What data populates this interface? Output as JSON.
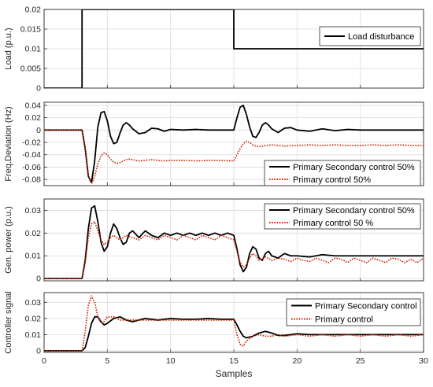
{
  "chart_data": [
    {
      "type": "line",
      "ylabel": "Load (p.u.)",
      "xlim": [
        0,
        30
      ],
      "ylim": [
        0,
        0.02
      ],
      "yticks": [
        "0",
        "0.005",
        "0.01",
        "0.015",
        "0.02"
      ],
      "grid": true,
      "legend_position": "top-right",
      "series": [
        {
          "name": "Load disturbance",
          "color": "#000000",
          "style": "solid",
          "x": [
            0,
            3,
            3,
            15,
            15,
            30
          ],
          "y": [
            0,
            0,
            0.02,
            0.02,
            0.01,
            0.01
          ]
        }
      ]
    },
    {
      "type": "line",
      "ylabel": "Freq.Deviation (Hz)",
      "xlim": [
        0,
        30
      ],
      "ylim": [
        -0.09,
        0.045
      ],
      "yticks": [
        "0.04",
        "0.02",
        "0",
        "-0.02",
        "-0.04",
        "-0.06",
        "-0.08"
      ],
      "grid": true,
      "legend_position": "bottom-right",
      "series": [
        {
          "name": "Primary Secondary control 50%",
          "color": "#000000",
          "style": "solid",
          "x": [
            0,
            3,
            3.25,
            3.5,
            3.75,
            4,
            4.25,
            4.5,
            4.75,
            5,
            5.25,
            5.5,
            5.75,
            6,
            6.25,
            6.5,
            6.75,
            7,
            7.5,
            8,
            8.5,
            9,
            9.5,
            10,
            11,
            12,
            13,
            14,
            15,
            15.25,
            15.5,
            15.75,
            16,
            16.25,
            16.5,
            16.75,
            17,
            17.25,
            17.5,
            17.75,
            18,
            18.5,
            19,
            19.5,
            20,
            21,
            22,
            23,
            24,
            25,
            26,
            27,
            28,
            29,
            30
          ],
          "y": [
            0,
            0,
            -0.03,
            -0.075,
            -0.085,
            -0.05,
            0.005,
            0.028,
            0.03,
            0.015,
            -0.01,
            -0.022,
            -0.02,
            -0.005,
            0.008,
            0.012,
            0.008,
            0.002,
            -0.006,
            -0.004,
            0.003,
            0.002,
            -0.002,
            0.001,
            0,
            0.001,
            0,
            0,
            0,
            0.02,
            0.037,
            0.04,
            0.025,
            0.005,
            -0.01,
            -0.012,
            -0.004,
            0.008,
            0.012,
            0.008,
            0.002,
            -0.004,
            0.003,
            0.004,
            0,
            -0.002,
            0.002,
            -0.001,
            0.001,
            0,
            0,
            0,
            0,
            0,
            0
          ]
        },
        {
          "name": "Primary control 50%",
          "color": "#cc2200",
          "style": "dotted",
          "x": [
            0,
            3,
            3.25,
            3.5,
            3.75,
            4,
            4.25,
            4.5,
            4.75,
            5,
            5.25,
            5.5,
            5.75,
            6,
            6.25,
            6.5,
            6.75,
            7,
            7.5,
            8,
            8.5,
            9,
            9.5,
            10,
            11,
            12,
            13,
            14,
            15,
            15.25,
            15.5,
            15.75,
            16,
            16.25,
            16.5,
            16.75,
            17,
            17.5,
            18,
            18.5,
            19,
            20,
            21,
            22,
            23,
            24,
            25,
            26,
            27,
            28,
            29,
            30
          ],
          "y": [
            0,
            0,
            -0.03,
            -0.075,
            -0.087,
            -0.075,
            -0.055,
            -0.042,
            -0.037,
            -0.04,
            -0.047,
            -0.052,
            -0.054,
            -0.053,
            -0.05,
            -0.048,
            -0.047,
            -0.048,
            -0.05,
            -0.049,
            -0.048,
            -0.049,
            -0.05,
            -0.049,
            -0.049,
            -0.05,
            -0.049,
            -0.049,
            -0.05,
            -0.04,
            -0.03,
            -0.022,
            -0.018,
            -0.02,
            -0.024,
            -0.026,
            -0.027,
            -0.025,
            -0.024,
            -0.025,
            -0.026,
            -0.025,
            -0.024,
            -0.025,
            -0.024,
            -0.025,
            -0.025,
            -0.024,
            -0.025,
            -0.024,
            -0.025,
            -0.025
          ]
        }
      ]
    },
    {
      "type": "line",
      "ylabel": "Gen. power (p.u.)",
      "xlim": [
        0,
        30
      ],
      "ylim": [
        -0.001,
        0.035
      ],
      "yticks": [
        "0.03",
        "0.02",
        "0.01",
        "0"
      ],
      "grid": true,
      "legend_position": "top-right",
      "series": [
        {
          "name": "Primary Secondary control 50%",
          "color": "#000000",
          "style": "solid",
          "x": [
            0,
            3,
            3.25,
            3.5,
            3.75,
            4,
            4.25,
            4.5,
            4.75,
            5,
            5.25,
            5.5,
            5.75,
            6,
            6.25,
            6.5,
            6.75,
            7,
            7.5,
            8,
            8.5,
            9,
            9.5,
            10,
            10.5,
            11,
            11.5,
            12,
            12.5,
            13,
            13.5,
            14,
            14.5,
            15,
            15.25,
            15.5,
            15.75,
            16,
            16.25,
            16.5,
            16.75,
            17,
            17.25,
            17.5,
            17.75,
            18,
            18.5,
            19,
            19.5,
            20,
            21,
            22,
            23,
            24,
            25,
            26,
            27,
            28,
            29,
            30
          ],
          "y": [
            0,
            0,
            0.008,
            0.022,
            0.031,
            0.032,
            0.025,
            0.016,
            0.012,
            0.014,
            0.02,
            0.024,
            0.022,
            0.018,
            0.015,
            0.016,
            0.02,
            0.021,
            0.018,
            0.021,
            0.019,
            0.018,
            0.02,
            0.019,
            0.02,
            0.019,
            0.02,
            0.019,
            0.02,
            0.019,
            0.02,
            0.019,
            0.02,
            0.019,
            0.013,
            0.006,
            0.003,
            0.005,
            0.011,
            0.014,
            0.013,
            0.009,
            0.008,
            0.011,
            0.012,
            0.01,
            0.009,
            0.011,
            0.01,
            0.01,
            0.0095,
            0.0105,
            0.01,
            0.01,
            0.01,
            0.01,
            0.01,
            0.01,
            0.01,
            0.01
          ]
        },
        {
          "name": "Primary control 50 %",
          "color": "#cc2200",
          "style": "dotted",
          "x": [
            0,
            3,
            3.25,
            3.5,
            3.75,
            4,
            4.25,
            4.5,
            4.75,
            5,
            5.25,
            5.5,
            5.75,
            6,
            6.5,
            7,
            7.5,
            8,
            8.5,
            9,
            9.5,
            10,
            10.5,
            11,
            11.5,
            12,
            12.5,
            13,
            13.5,
            14,
            14.5,
            15,
            15.25,
            15.5,
            15.75,
            16,
            16.25,
            16.5,
            16.75,
            17,
            17.5,
            18,
            18.5,
            19,
            19.5,
            20,
            20.5,
            21,
            21.5,
            22,
            22.5,
            23,
            23.5,
            24,
            24.5,
            25,
            25.5,
            26,
            26.5,
            27,
            27.5,
            28,
            28.5,
            29,
            29.5,
            30
          ],
          "y": [
            0,
            0,
            0.007,
            0.018,
            0.024,
            0.025,
            0.021,
            0.017,
            0.015,
            0.016,
            0.018,
            0.019,
            0.018,
            0.017,
            0.019,
            0.018,
            0.017,
            0.019,
            0.018,
            0.017,
            0.019,
            0.018,
            0.017,
            0.019,
            0.018,
            0.017,
            0.019,
            0.018,
            0.017,
            0.019,
            0.018,
            0.017,
            0.012,
            0.007,
            0.005,
            0.006,
            0.009,
            0.011,
            0.01,
            0.008,
            0.0095,
            0.008,
            0.009,
            0.0085,
            0.0075,
            0.009,
            0.008,
            0.0075,
            0.009,
            0.008,
            0.007,
            0.009,
            0.0085,
            0.007,
            0.009,
            0.008,
            0.007,
            0.009,
            0.008,
            0.007,
            0.009,
            0.0085,
            0.007,
            0.0085,
            0.007,
            0.009
          ]
        }
      ]
    },
    {
      "type": "line",
      "ylabel": "Controller signal",
      "xlabel": "Samples",
      "xlim": [
        0,
        30
      ],
      "ylim": [
        -0.001,
        0.036
      ],
      "xticks": [
        "0",
        "5",
        "10",
        "15",
        "20",
        "25",
        "30"
      ],
      "yticks": [
        "0.03",
        "0.02",
        "0.01",
        "0"
      ],
      "grid": true,
      "legend_position": "top-right",
      "series": [
        {
          "name": "Primary Secondary control",
          "color": "#000000",
          "style": "solid",
          "x": [
            0,
            3,
            3.25,
            3.5,
            3.75,
            4,
            4.25,
            4.5,
            4.75,
            5,
            5.5,
            6,
            6.5,
            7,
            7.5,
            8,
            9,
            10,
            11,
            12,
            13,
            14,
            15,
            15.25,
            15.5,
            15.75,
            16,
            16.5,
            17,
            17.5,
            18,
            18.5,
            19,
            20,
            21,
            22,
            23,
            24,
            25,
            26,
            27,
            28,
            29,
            30
          ],
          "y": [
            0,
            0,
            0.002,
            0.009,
            0.017,
            0.021,
            0.021,
            0.018,
            0.016,
            0.017,
            0.02,
            0.021,
            0.019,
            0.018,
            0.019,
            0.02,
            0.019,
            0.02,
            0.0195,
            0.0195,
            0.02,
            0.0195,
            0.0195,
            0.016,
            0.012,
            0.009,
            0.008,
            0.009,
            0.011,
            0.012,
            0.011,
            0.0095,
            0.0095,
            0.0105,
            0.01,
            0.01,
            0.01,
            0.01,
            0.01,
            0.01,
            0.01,
            0.01,
            0.01,
            0.01
          ]
        },
        {
          "name": "Primary control",
          "color": "#cc2200",
          "style": "dotted",
          "x": [
            0,
            3,
            3.25,
            3.5,
            3.75,
            4,
            4.25,
            4.5,
            4.75,
            5,
            5.5,
            6,
            6.5,
            7,
            7.5,
            8,
            9,
            10,
            11,
            12,
            13,
            14,
            15,
            15.25,
            15.5,
            15.75,
            16,
            16.5,
            17,
            17.5,
            18,
            18.5,
            19,
            20,
            21,
            22,
            23,
            24,
            25,
            26,
            27,
            28,
            29,
            30
          ],
          "y": [
            0,
            0,
            0.012,
            0.028,
            0.034,
            0.03,
            0.021,
            0.017,
            0.018,
            0.021,
            0.021,
            0.019,
            0.019,
            0.019,
            0.019,
            0.019,
            0.019,
            0.019,
            0.019,
            0.019,
            0.019,
            0.019,
            0.019,
            0.01,
            0.004,
            0.003,
            0.006,
            0.009,
            0.01,
            0.009,
            0.009,
            0.01,
            0.009,
            0.01,
            0.009,
            0.01,
            0.009,
            0.01,
            0.009,
            0.01,
            0.009,
            0.01,
            0.009,
            0.01
          ]
        }
      ]
    }
  ]
}
